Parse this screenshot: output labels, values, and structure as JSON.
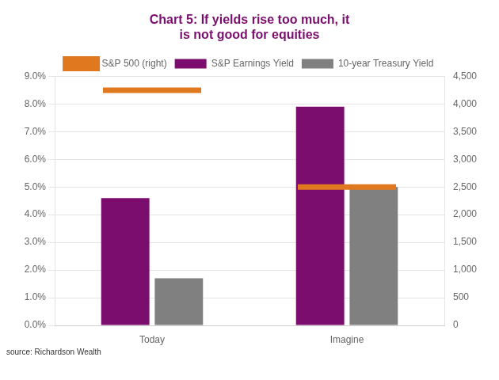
{
  "chart_data": {
    "type": "bar",
    "title": "Chart 5: If yields rise too much, it\nis not good for equities",
    "title_color": "#7B0D6E",
    "annotations": [
      "source: Richardson Wealth"
    ],
    "categories": [
      "Today",
      "Imagine"
    ],
    "series": [
      {
        "name": "S&P Earnings Yield",
        "color": "#7B0D6E",
        "values": [
          0.046,
          0.079
        ]
      },
      {
        "name": "10-year Treasury Yield",
        "color": "#808080",
        "values": [
          0.017,
          0.05
        ]
      },
      {
        "name": "S&P 500 (right)",
        "color": "#E07820",
        "values": [
          4250,
          2500
        ],
        "axis": "y2",
        "type": "line",
        "marker": "hline",
        "line_style": "none"
      }
    ],
    "ylim": [
      0,
      0.09
    ],
    "yticks": [
      {
        "value": 0.0,
        "label": "0.0%"
      },
      {
        "value": 0.01,
        "label": "1.0%"
      },
      {
        "value": 0.02,
        "label": "2.0%"
      },
      {
        "value": 0.03,
        "label": "3.0%"
      },
      {
        "value": 0.04,
        "label": "4.0%"
      },
      {
        "value": 0.05,
        "label": "5.0%"
      },
      {
        "value": 0.06,
        "label": "6.0%"
      },
      {
        "value": 0.07,
        "label": "7.0%"
      },
      {
        "value": 0.08,
        "label": "8.0%"
      },
      {
        "value": 0.09,
        "label": "9.0%"
      }
    ],
    "y2lim": [
      0,
      4500
    ],
    "y2ticks": [
      0,
      500,
      {
        "value": 1000,
        "label": "1,000"
      },
      {
        "value": 1500,
        "label": "1,500"
      },
      {
        "value": 2000,
        "label": "2,000"
      },
      {
        "value": 2500,
        "label": "2,500"
      },
      {
        "value": 3000,
        "label": "3,000"
      },
      {
        "value": 3500,
        "label": "3,500"
      },
      {
        "value": 4000,
        "label": "4,000"
      },
      {
        "value": 4500,
        "label": "4,500"
      }
    ],
    "grid": true,
    "legend": "top"
  }
}
